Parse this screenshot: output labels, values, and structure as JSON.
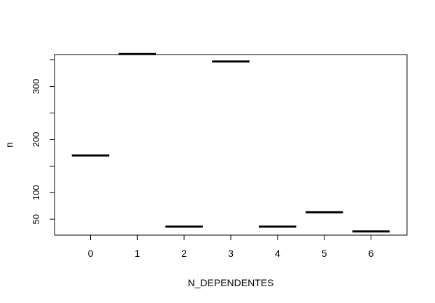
{
  "chart_data": {
    "type": "bar",
    "title": "",
    "xlabel": "N_DEPENDENTES",
    "ylabel": "n",
    "categories": [
      "0",
      "1",
      "2",
      "3",
      "4",
      "5",
      "6"
    ],
    "values": [
      170,
      361,
      36,
      347,
      36,
      63,
      27
    ],
    "x_ticks": [
      "0",
      "1",
      "2",
      "3",
      "4",
      "5",
      "6"
    ],
    "y_ticks": [
      50,
      100,
      200,
      300
    ],
    "y_minor_ticks": [
      150,
      250,
      350
    ],
    "ylim": [
      20,
      360
    ],
    "xlim": [
      -0.77,
      6.77
    ],
    "grid": false,
    "legend": "none",
    "line_color": "#000000"
  }
}
